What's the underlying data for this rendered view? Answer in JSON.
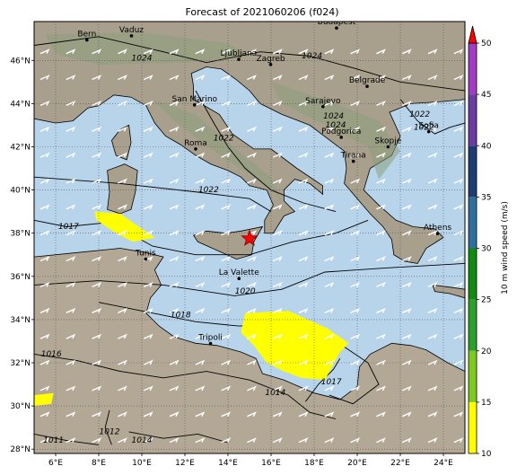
{
  "title": "Forecast of 2021060206 (f024)",
  "map": {
    "lon_range": [
      5,
      25
    ],
    "lat_range": [
      27.8,
      47.8
    ],
    "lon_ticks": [
      {
        "value": 6,
        "label": "6°E"
      },
      {
        "value": 8,
        "label": "8°E"
      },
      {
        "value": 10,
        "label": "10°E"
      },
      {
        "value": 12,
        "label": "12°E"
      },
      {
        "value": 14,
        "label": "14°E"
      },
      {
        "value": 16,
        "label": "16°E"
      },
      {
        "value": 18,
        "label": "18°E"
      },
      {
        "value": 20,
        "label": "20°E"
      },
      {
        "value": 22,
        "label": "22°E"
      },
      {
        "value": 24,
        "label": "24°E"
      }
    ],
    "lat_ticks": [
      {
        "value": 28,
        "label": "28°N"
      },
      {
        "value": 30,
        "label": "30°N"
      },
      {
        "value": 32,
        "label": "32°N"
      },
      {
        "value": 34,
        "label": "34°N"
      },
      {
        "value": 36,
        "label": "36°N"
      },
      {
        "value": 38,
        "label": "38°N"
      },
      {
        "value": 40,
        "label": "40°N"
      },
      {
        "value": 42,
        "label": "42°N"
      },
      {
        "value": 44,
        "label": "44°N"
      },
      {
        "value": 46,
        "label": "46°N"
      }
    ],
    "grid": true,
    "colors": {
      "sea": "#b8d4ea",
      "land": "#a99f8d",
      "mountain": "#8a9e7c",
      "desert": "#b3a896",
      "wind_highlight": "#ffff00",
      "star": "#ff0000"
    },
    "cities": [
      {
        "name": "Bern",
        "lon": 7.45,
        "lat": 46.95
      },
      {
        "name": "Vaduz",
        "lon": 9.52,
        "lat": 47.14
      },
      {
        "name": "Budapest",
        "lon": 19.04,
        "lat": 47.5
      },
      {
        "name": "Ljubljana",
        "lon": 14.5,
        "lat": 46.05
      },
      {
        "name": "Zagreb",
        "lon": 15.98,
        "lat": 45.81
      },
      {
        "name": "Belgrade",
        "lon": 20.46,
        "lat": 44.8
      },
      {
        "name": "San Marino",
        "lon": 12.45,
        "lat": 43.94
      },
      {
        "name": "Sarajevo",
        "lon": 18.41,
        "lat": 43.86
      },
      {
        "name": "Sofia",
        "lon": 23.32,
        "lat": 42.7
      },
      {
        "name": "Podgorica",
        "lon": 19.26,
        "lat": 42.44
      },
      {
        "name": "Skopje",
        "lon": 21.43,
        "lat": 42.0
      },
      {
        "name": "Roma",
        "lon": 12.5,
        "lat": 41.9
      },
      {
        "name": "Tirana",
        "lon": 19.82,
        "lat": 41.33
      },
      {
        "name": "Athens",
        "lon": 23.73,
        "lat": 37.98
      },
      {
        "name": "Tunis",
        "lon": 10.18,
        "lat": 36.8
      },
      {
        "name": "La Valette",
        "lon": 14.51,
        "lat": 35.9
      },
      {
        "name": "Tripoli",
        "lon": 13.19,
        "lat": 32.89
      }
    ],
    "isobar_labels": [
      {
        "text": "1024",
        "lon": 10.0,
        "lat": 46.0
      },
      {
        "text": "1024",
        "lon": 17.9,
        "lat": 46.1
      },
      {
        "text": "1024",
        "lon": 18.9,
        "lat": 43.3
      },
      {
        "text": "1024",
        "lon": 19.0,
        "lat": 42.9
      },
      {
        "text": "1022",
        "lon": 22.9,
        "lat": 43.4
      },
      {
        "text": "1022",
        "lon": 23.1,
        "lat": 42.8
      },
      {
        "text": "1022",
        "lon": 13.8,
        "lat": 42.3
      },
      {
        "text": "1022",
        "lon": 13.1,
        "lat": 39.9
      },
      {
        "text": "1017",
        "lon": 6.6,
        "lat": 38.2
      },
      {
        "text": "1020",
        "lon": 14.8,
        "lat": 35.2
      },
      {
        "text": "1018",
        "lon": 11.8,
        "lat": 34.1
      },
      {
        "text": "1016",
        "lon": 5.8,
        "lat": 32.3
      },
      {
        "text": "1014",
        "lon": 16.2,
        "lat": 30.5
      },
      {
        "text": "1017",
        "lon": 18.8,
        "lat": 31.0
      },
      {
        "text": "1012",
        "lon": 8.5,
        "lat": 28.7
      },
      {
        "text": "1011",
        "lon": 5.9,
        "lat": 28.3
      },
      {
        "text": "1014",
        "lon": 10.0,
        "lat": 28.3
      }
    ],
    "star": {
      "lon": 15.0,
      "lat": 37.75
    },
    "strong_wind_areas": [
      {
        "name": "sardinia-channel",
        "points": [
          [
            7.8,
            39.0
          ],
          [
            9.0,
            38.9
          ],
          [
            10.0,
            38.2
          ],
          [
            10.6,
            37.8
          ],
          [
            9.6,
            37.6
          ],
          [
            8.8,
            38.0
          ],
          [
            7.9,
            38.6
          ]
        ]
      },
      {
        "name": "gulf-of-sirte",
        "points": [
          [
            14.8,
            34.3
          ],
          [
            16.8,
            34.4
          ],
          [
            18.6,
            33.6
          ],
          [
            19.6,
            32.9
          ],
          [
            19.2,
            32.5
          ],
          [
            18.5,
            31.2
          ],
          [
            17.4,
            31.3
          ],
          [
            16.6,
            31.6
          ],
          [
            15.8,
            32.0
          ],
          [
            15.2,
            32.8
          ],
          [
            14.6,
            33.4
          ]
        ]
      },
      {
        "name": "sw-corner",
        "points": [
          [
            5.0,
            30.5
          ],
          [
            5.9,
            30.6
          ],
          [
            5.8,
            30.1
          ],
          [
            5.0,
            30.0
          ]
        ]
      }
    ]
  },
  "colorbar": {
    "label": "10 m wind speed (m/s)",
    "min": 10,
    "max": 50,
    "ticks": [
      10,
      15,
      20,
      25,
      30,
      35,
      40,
      45,
      50
    ],
    "bands": [
      {
        "from": 10,
        "to": 15,
        "color": "#ffff00"
      },
      {
        "from": 15,
        "to": 20,
        "color": "#7ec820"
      },
      {
        "from": 20,
        "to": 25,
        "color": "#2ca02c"
      },
      {
        "from": 25,
        "to": 30,
        "color": "#138a13"
      },
      {
        "from": 30,
        "to": 35,
        "color": "#2e6f9e"
      },
      {
        "from": 35,
        "to": 40,
        "color": "#1f3d73"
      },
      {
        "from": 40,
        "to": 45,
        "color": "#6a3ea1"
      },
      {
        "from": 45,
        "to": 50,
        "color": "#a23cc2"
      }
    ],
    "extend_color": "#ff0000"
  }
}
